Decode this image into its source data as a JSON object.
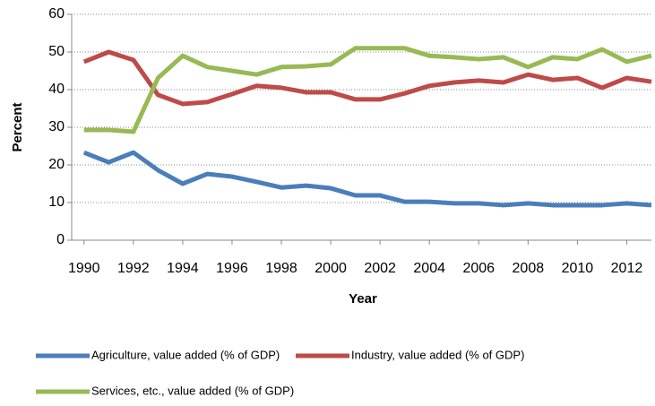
{
  "chart_data": {
    "type": "line",
    "y_label": "Percent",
    "x_label": "Year",
    "x": [
      1990,
      1991,
      1992,
      1993,
      1994,
      1995,
      1996,
      1997,
      1998,
      1999,
      2000,
      2001,
      2002,
      2003,
      2004,
      2005,
      2006,
      2007,
      2008,
      2009,
      2010,
      2011,
      2012,
      2013
    ],
    "xlim": [
      1989.5,
      2013
    ],
    "xticks": [
      1990,
      1992,
      1994,
      1996,
      1998,
      2000,
      2002,
      2004,
      2006,
      2008,
      2010,
      2012
    ],
    "ylim": [
      0,
      60
    ],
    "yticks": [
      0,
      10,
      20,
      30,
      40,
      50,
      60
    ],
    "grid": true,
    "series": [
      {
        "name": "Agriculture, value added (% of GDP)",
        "color": "#4a7ebb",
        "values": [
          23.3,
          20.7,
          23.3,
          18.6,
          15,
          17.6,
          16.9,
          15.5,
          14,
          14.5,
          13.8,
          11.9,
          11.9,
          10.2,
          10.2,
          9.8,
          9.8,
          9.3,
          9.8,
          9.3,
          9.3,
          9.3,
          9.8,
          9.3
        ]
      },
      {
        "name": "Industry, value added (% of GDP)",
        "color": "#be4b48",
        "values": [
          47.4,
          50,
          47.9,
          38.6,
          36.2,
          36.7,
          38.8,
          41,
          40.5,
          39.3,
          39.3,
          37.4,
          37.4,
          39,
          41,
          41.9,
          42.4,
          41.9,
          44,
          42.6,
          43.1,
          40.5,
          43.1,
          42.1
        ]
      },
      {
        "name": "Services, etc., value added (% of GDP)",
        "color": "#98b954",
        "values": [
          29.3,
          29.3,
          28.8,
          43.1,
          49,
          46,
          45,
          44,
          46,
          46.2,
          46.7,
          51,
          51,
          51,
          49,
          48.6,
          48.1,
          48.6,
          46,
          48.6,
          48.1,
          50.7,
          47.4,
          49
        ]
      }
    ]
  }
}
